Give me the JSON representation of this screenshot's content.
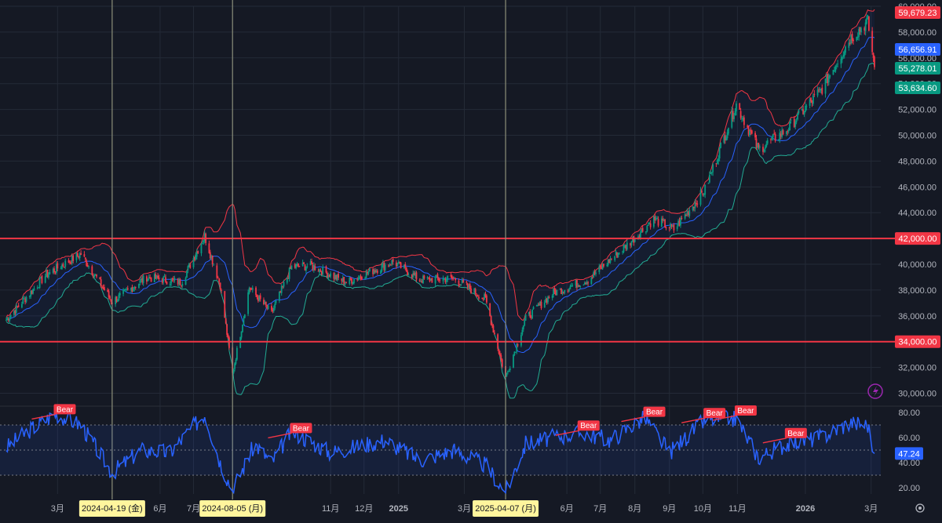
{
  "chart_data": [
    {
      "type": "candlestick",
      "ylim": [
        29000,
        60000
      ],
      "y_ticks": [
        "60,000.00",
        "58,000.00",
        "56,000.00",
        "54,000.00",
        "52,000.00",
        "50,000.00",
        "48,000.00",
        "46,000.00",
        "44,000.00",
        "42,000.00",
        "40,000.00",
        "38,000.00",
        "36,000.00",
        "34,000.00",
        "32,000.00",
        "30,000.00"
      ],
      "y_tick_values": [
        60000,
        58000,
        56000,
        54000,
        52000,
        50000,
        48000,
        46000,
        44000,
        42000,
        40000,
        38000,
        36000,
        34000,
        32000,
        30000
      ],
      "x_ticks": [
        {
          "label": "3月",
          "date": "2024-03-01"
        },
        {
          "label": "6月",
          "date": "2024-06-01"
        },
        {
          "label": "7月",
          "date": "2024-07-01"
        },
        {
          "label": "11月",
          "date": "2024-11-01"
        },
        {
          "label": "12月",
          "date": "2024-12-01"
        },
        {
          "label": "2025",
          "date": "2025-01-01",
          "bold": true
        },
        {
          "label": "3月",
          "date": "2025-03-01"
        },
        {
          "label": "6月",
          "date": "2025-06-01"
        },
        {
          "label": "7月",
          "date": "2025-07-01"
        },
        {
          "label": "8月",
          "date": "2025-08-01"
        },
        {
          "label": "9月",
          "date": "2025-09-01"
        },
        {
          "label": "10月",
          "date": "2025-10-01"
        },
        {
          "label": "11月",
          "date": "2025-11-01"
        },
        {
          "label": "2026",
          "date": "2026-01-01",
          "bold": true
        },
        {
          "label": "3月",
          "date": "2026-03-01"
        }
      ],
      "x_range": [
        "2024-01-15",
        "2026-03-04"
      ],
      "price_anchors": [
        {
          "date": "2024-01-15",
          "value": 35700
        },
        {
          "date": "2024-02-20",
          "value": 39200
        },
        {
          "date": "2024-03-22",
          "value": 40800
        },
        {
          "date": "2024-04-19",
          "value": 37100
        },
        {
          "date": "2024-05-20",
          "value": 39000
        },
        {
          "date": "2024-06-20",
          "value": 38600
        },
        {
          "date": "2024-07-11",
          "value": 42200
        },
        {
          "date": "2024-07-25",
          "value": 38400
        },
        {
          "date": "2024-08-05",
          "value": 31500
        },
        {
          "date": "2024-08-20",
          "value": 38200
        },
        {
          "date": "2024-09-09",
          "value": 36200
        },
        {
          "date": "2024-09-27",
          "value": 39800
        },
        {
          "date": "2024-10-15",
          "value": 39900
        },
        {
          "date": "2024-11-15",
          "value": 38600
        },
        {
          "date": "2024-12-27",
          "value": 40200
        },
        {
          "date": "2025-01-20",
          "value": 38800
        },
        {
          "date": "2025-02-20",
          "value": 38900
        },
        {
          "date": "2025-03-20",
          "value": 37300
        },
        {
          "date": "2025-04-07",
          "value": 31200
        },
        {
          "date": "2025-04-25",
          "value": 35800
        },
        {
          "date": "2025-05-20",
          "value": 37800
        },
        {
          "date": "2025-06-20",
          "value": 38800
        },
        {
          "date": "2025-07-25",
          "value": 41500
        },
        {
          "date": "2025-08-18",
          "value": 43500
        },
        {
          "date": "2025-09-05",
          "value": 42700
        },
        {
          "date": "2025-10-03",
          "value": 45800
        },
        {
          "date": "2025-10-31",
          "value": 52400
        },
        {
          "date": "2025-11-20",
          "value": 48900
        },
        {
          "date": "2025-12-15",
          "value": 50400
        },
        {
          "date": "2026-01-15",
          "value": 53500
        },
        {
          "date": "2026-02-10",
          "value": 57500
        },
        {
          "date": "2026-02-26",
          "value": 58800
        },
        {
          "date": "2026-03-04",
          "value": 55278
        }
      ],
      "bands": {
        "upper_color": "#f23645",
        "middle_color": "#2962ff",
        "lower_color": "#22ab94"
      },
      "horizontal_lines": [
        {
          "value": 42000,
          "label": "42,000.00",
          "color": "#f23645"
        },
        {
          "value": 34000,
          "label": "34,000.00",
          "color": "#f23645"
        }
      ],
      "price_labels": [
        {
          "value": 59679.23,
          "text": "59,679.23",
          "color": "#f23645"
        },
        {
          "value": 56656.91,
          "text": "56,656.91",
          "color": "#2962ff"
        },
        {
          "value": 55278.01,
          "text": "55,278.01",
          "color": "#089981"
        },
        {
          "value": 53634.6,
          "text": "53,634.60",
          "color": "#089981"
        }
      ],
      "vertical_markers": [
        {
          "date": "2024-04-19",
          "label": "2024-04-19 (金)"
        },
        {
          "date": "2024-08-05",
          "label": "2024-08-05 (月)"
        },
        {
          "date": "2025-04-07",
          "label": "2025-04-07 (月)"
        }
      ]
    },
    {
      "type": "line",
      "ylim": [
        15,
        85
      ],
      "y_ticks": [
        "80.00",
        "60.00",
        "40.00",
        "20.00"
      ],
      "y_tick_values": [
        80,
        60,
        40,
        20
      ],
      "band": [
        30,
        70
      ],
      "midline": 50,
      "line_color": "#2962ff",
      "current_value": {
        "value": 47.24,
        "text": "47.24"
      },
      "rsi_anchors": [
        {
          "date": "2024-01-15",
          "value": 52
        },
        {
          "date": "2024-02-05",
          "value": 66
        },
        {
          "date": "2024-02-28",
          "value": 79
        },
        {
          "date": "2024-03-22",
          "value": 70
        },
        {
          "date": "2024-04-19",
          "value": 32
        },
        {
          "date": "2024-05-15",
          "value": 50
        },
        {
          "date": "2024-06-10",
          "value": 48
        },
        {
          "date": "2024-07-11",
          "value": 79
        },
        {
          "date": "2024-07-25",
          "value": 40
        },
        {
          "date": "2024-08-05",
          "value": 18
        },
        {
          "date": "2024-08-25",
          "value": 55
        },
        {
          "date": "2024-09-09",
          "value": 40
        },
        {
          "date": "2024-09-27",
          "value": 65
        },
        {
          "date": "2024-11-01",
          "value": 48
        },
        {
          "date": "2024-12-20",
          "value": 58
        },
        {
          "date": "2025-01-20",
          "value": 42
        },
        {
          "date": "2025-02-20",
          "value": 50
        },
        {
          "date": "2025-03-20",
          "value": 38
        },
        {
          "date": "2025-04-07",
          "value": 16
        },
        {
          "date": "2025-04-25",
          "value": 55
        },
        {
          "date": "2025-05-20",
          "value": 60
        },
        {
          "date": "2025-06-15",
          "value": 64
        },
        {
          "date": "2025-07-10",
          "value": 58
        },
        {
          "date": "2025-08-10",
          "value": 76
        },
        {
          "date": "2025-09-01",
          "value": 48
        },
        {
          "date": "2025-10-03",
          "value": 74
        },
        {
          "date": "2025-10-31",
          "value": 75
        },
        {
          "date": "2025-11-20",
          "value": 44
        },
        {
          "date": "2025-12-15",
          "value": 55
        },
        {
          "date": "2026-01-15",
          "value": 60
        },
        {
          "date": "2026-02-10",
          "value": 72
        },
        {
          "date": "2026-02-26",
          "value": 70
        },
        {
          "date": "2026-03-04",
          "value": 45
        }
      ],
      "bear_signals": [
        {
          "date": "2024-02-28",
          "value": 81,
          "label": "Bear"
        },
        {
          "date": "2024-09-27",
          "value": 66,
          "label": "Bear"
        },
        {
          "date": "2025-06-12",
          "value": 68,
          "label": "Bear"
        },
        {
          "date": "2025-08-10",
          "value": 79,
          "label": "Bear"
        },
        {
          "date": "2025-10-03",
          "value": 78,
          "label": "Bear"
        },
        {
          "date": "2025-10-31",
          "value": 80,
          "label": "Bear"
        },
        {
          "date": "2025-12-15",
          "value": 62,
          "label": "Bear"
        }
      ]
    }
  ],
  "colors": {
    "background": "#151924",
    "grid": "#242a37",
    "up": "#089981",
    "down": "#f23645",
    "axis_text": "#b2b5be",
    "marker_label_bg": "#fff59d"
  },
  "icons": {
    "lightning": "lightning-icon",
    "settings": "gear-icon"
  }
}
